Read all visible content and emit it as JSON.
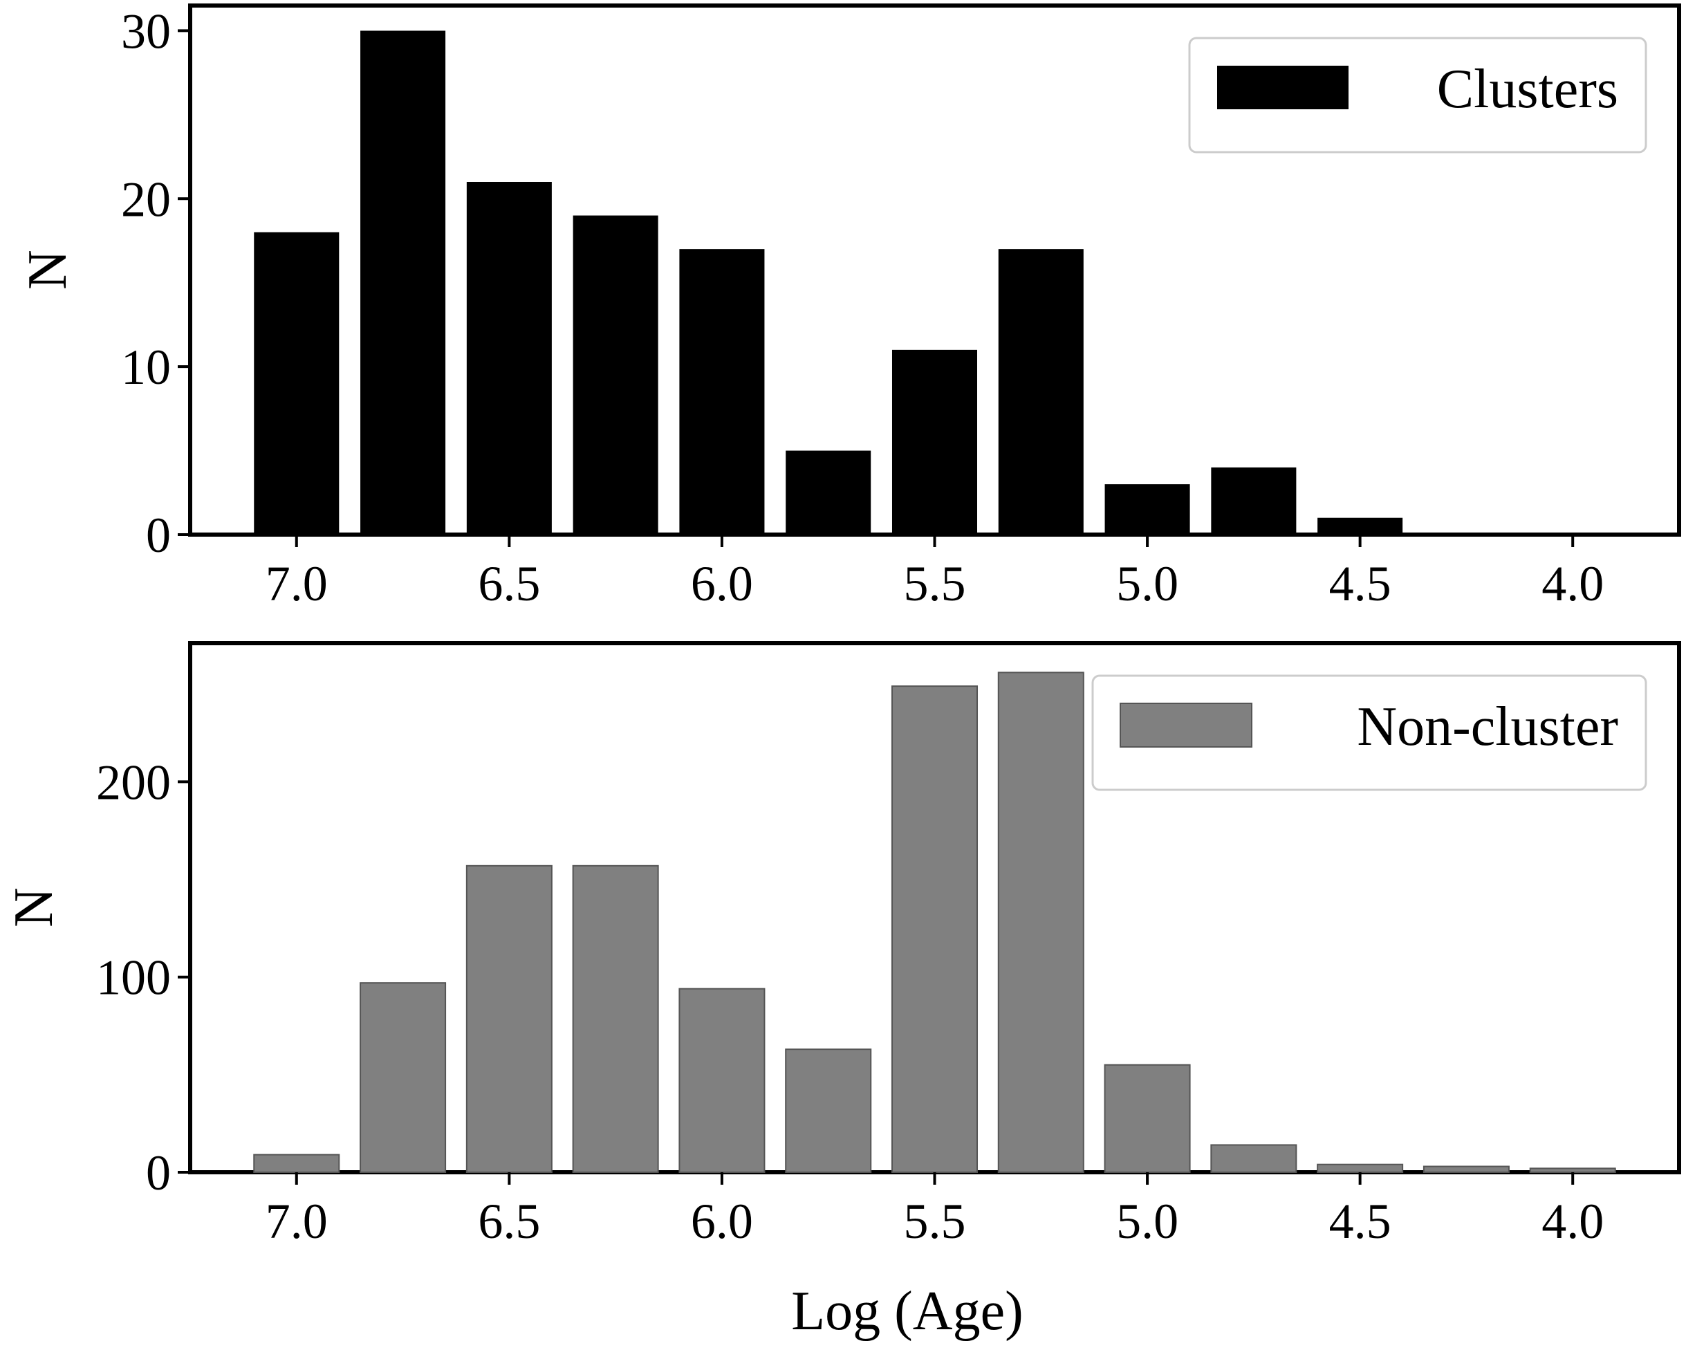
{
  "chart_data": [
    {
      "type": "bar",
      "x": [
        7.0,
        6.75,
        6.5,
        6.25,
        6.0,
        5.75,
        5.5,
        5.25,
        5.0,
        4.75,
        4.5,
        4.25,
        4.0
      ],
      "series": [
        {
          "name": "Clusters",
          "values": [
            18,
            30,
            21,
            19,
            17,
            5,
            11,
            17,
            3,
            4,
            1,
            0,
            0
          ],
          "color": "#000000"
        }
      ],
      "xlabel": "",
      "ylabel": "N",
      "xlim": [
        7.25,
        3.75
      ],
      "ylim": [
        0,
        31.5
      ],
      "xticks": [
        "7.0",
        "6.5",
        "6.0",
        "5.5",
        "5.0",
        "4.5",
        "4.0"
      ],
      "yticks": [
        "0",
        "10",
        "20",
        "30"
      ],
      "legend_position": "top-right",
      "grid": false
    },
    {
      "type": "bar",
      "x": [
        7.0,
        6.75,
        6.5,
        6.25,
        6.0,
        5.75,
        5.5,
        5.25,
        5.0,
        4.75,
        4.5,
        4.25,
        4.0
      ],
      "series": [
        {
          "name": "Non-cluster",
          "values": [
            9,
            97,
            157,
            157,
            94,
            63,
            249,
            256,
            55,
            14,
            4,
            3,
            2
          ],
          "color": "#808080"
        }
      ],
      "xlabel": "Log (Age)",
      "ylabel": "N",
      "xlim": [
        7.25,
        3.75
      ],
      "ylim": [
        0,
        271
      ],
      "xticks": [
        "7.0",
        "6.5",
        "6.0",
        "5.5",
        "5.0",
        "4.5",
        "4.0"
      ],
      "yticks": [
        "0",
        "100",
        "200"
      ],
      "legend_position": "top-right",
      "grid": false
    }
  ]
}
